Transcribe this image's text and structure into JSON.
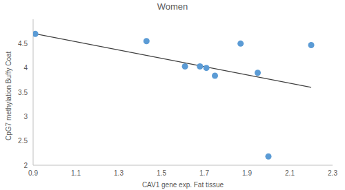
{
  "chart_data": {
    "type": "scatter",
    "title": "Women",
    "x_label": "CAV1 gene exp. Fat tissue",
    "y_label": "CpG7 methylation Buffy Coat",
    "x": [
      0.91,
      1.43,
      1.61,
      1.68,
      1.71,
      1.75,
      1.87,
      1.95,
      2.0,
      2.2
    ],
    "values": [
      4.7,
      4.55,
      4.03,
      4.03,
      4.0,
      3.84,
      4.5,
      3.9,
      2.18,
      4.47
    ],
    "color": "#5b9bd5",
    "marker": "circle",
    "trendline": {
      "x": [
        0.91,
        2.2
      ],
      "values": [
        4.7,
        3.6
      ],
      "color": "#404040",
      "line_style": "solid"
    },
    "xlim": [
      0.9,
      2.3
    ],
    "xticks": [
      0.9,
      1.1,
      1.3,
      1.5,
      1.7,
      1.9,
      2.1,
      2.3
    ],
    "ylim": [
      2,
      5
    ],
    "yticks": [
      2,
      2.5,
      3,
      3.5,
      4,
      4.5
    ],
    "grid": false
  }
}
